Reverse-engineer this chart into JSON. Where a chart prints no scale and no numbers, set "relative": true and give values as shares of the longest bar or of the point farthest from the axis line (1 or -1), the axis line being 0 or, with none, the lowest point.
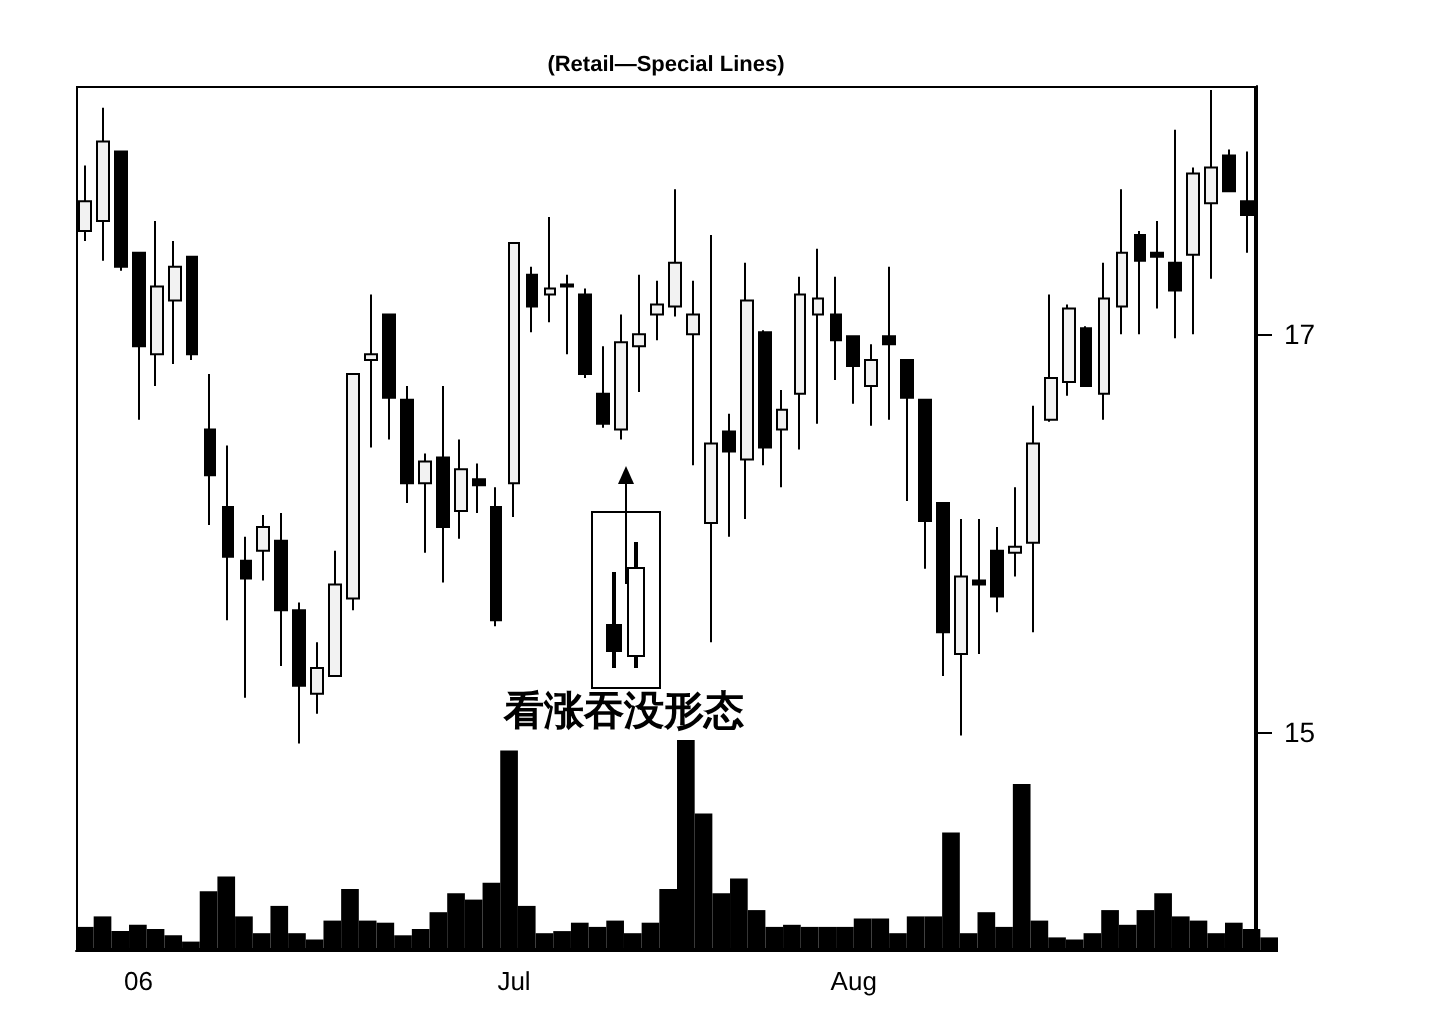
{
  "chart_data": [
    {
      "type": "candlestick",
      "title": "(Retail—Special Lines)",
      "color": "#000000",
      "ylim": [
        13.9,
        18.25
      ],
      "yticks": [
        15,
        17
      ],
      "annotations": [
        "看涨吞没形态"
      ],
      "categories": [
        null,
        null,
        null,
        "06",
        null,
        null,
        null,
        null,
        null,
        null,
        null,
        null,
        null,
        null,
        null,
        null,
        null,
        null,
        null,
        null,
        null,
        null,
        null,
        null,
        "Jul",
        null,
        null,
        null,
        null,
        null,
        null,
        null,
        null,
        null,
        null,
        null,
        null,
        null,
        null,
        null,
        null,
        null,
        null,
        "Aug",
        null,
        null,
        null,
        null,
        null,
        null,
        null,
        null,
        null,
        null,
        null,
        null,
        null,
        null,
        null,
        null,
        null,
        null,
        null,
        null,
        null,
        null
      ],
      "ohlc": [
        [
          17.52,
          17.85,
          17.47,
          17.67
        ],
        [
          17.57,
          18.14,
          17.37,
          17.97
        ],
        [
          17.92,
          17.92,
          17.32,
          17.34
        ],
        [
          17.41,
          17.41,
          16.57,
          16.94
        ],
        [
          16.9,
          17.57,
          16.74,
          17.24
        ],
        [
          17.17,
          17.47,
          16.85,
          17.34
        ],
        [
          17.39,
          17.39,
          16.87,
          16.9
        ],
        [
          16.52,
          16.8,
          16.04,
          16.29
        ],
        [
          16.13,
          16.44,
          15.56,
          15.88
        ],
        [
          15.86,
          15.98,
          15.17,
          15.77
        ],
        [
          15.91,
          16.09,
          15.76,
          16.03
        ],
        [
          15.96,
          16.1,
          15.33,
          15.61
        ],
        [
          15.61,
          15.65,
          14.94,
          15.23
        ],
        [
          15.19,
          15.45,
          15.09,
          15.32
        ],
        [
          15.28,
          15.91,
          15.28,
          15.74
        ],
        [
          15.67,
          16.8,
          15.61,
          16.8
        ],
        [
          16.87,
          17.2,
          16.43,
          16.9
        ],
        [
          17.1,
          17.1,
          16.47,
          16.68
        ],
        [
          16.67,
          16.74,
          16.15,
          16.25
        ],
        [
          16.25,
          16.4,
          15.9,
          16.36
        ],
        [
          16.38,
          16.74,
          15.75,
          16.03
        ],
        [
          16.11,
          16.47,
          15.97,
          16.32
        ],
        [
          16.27,
          16.35,
          16.1,
          16.24
        ],
        [
          16.13,
          16.23,
          15.53,
          15.56
        ],
        [
          16.25,
          17.46,
          16.08,
          17.46
        ],
        [
          17.3,
          17.34,
          17.01,
          17.14
        ],
        [
          17.2,
          17.59,
          17.06,
          17.23
        ],
        [
          17.25,
          17.3,
          16.9,
          17.24
        ],
        [
          17.2,
          17.23,
          16.78,
          16.8
        ],
        [
          16.7,
          16.94,
          16.53,
          16.55
        ],
        [
          16.52,
          17.1,
          16.47,
          16.96
        ],
        [
          16.94,
          17.3,
          16.71,
          17.0
        ],
        [
          17.1,
          17.27,
          16.97,
          17.15
        ],
        [
          17.14,
          17.73,
          17.09,
          17.36
        ],
        [
          17.0,
          17.27,
          16.34,
          17.1
        ],
        [
          16.05,
          17.5,
          15.45,
          16.45
        ],
        [
          16.51,
          16.6,
          15.98,
          16.41
        ],
        [
          16.37,
          17.36,
          16.07,
          17.17
        ],
        [
          17.01,
          17.02,
          16.34,
          16.43
        ],
        [
          16.52,
          16.72,
          16.23,
          16.62
        ],
        [
          16.7,
          17.29,
          16.42,
          17.2
        ],
        [
          17.1,
          17.43,
          16.55,
          17.18
        ],
        [
          17.1,
          17.29,
          16.77,
          16.97
        ],
        [
          16.99,
          16.99,
          16.65,
          16.84
        ],
        [
          16.74,
          16.95,
          16.54,
          16.87
        ],
        [
          16.99,
          17.34,
          16.57,
          16.95
        ],
        [
          16.87,
          16.87,
          16.16,
          16.68
        ],
        [
          16.67,
          16.67,
          15.82,
          16.06
        ],
        [
          16.15,
          16.15,
          15.28,
          15.5
        ],
        [
          15.39,
          16.07,
          14.98,
          15.78
        ],
        [
          15.76,
          16.07,
          15.39,
          15.74
        ],
        [
          15.91,
          16.03,
          15.6,
          15.68
        ],
        [
          15.9,
          16.23,
          15.78,
          15.93
        ],
        [
          15.95,
          16.64,
          15.5,
          16.45
        ],
        [
          16.57,
          17.2,
          16.56,
          16.78
        ],
        [
          16.76,
          17.15,
          16.69,
          17.13
        ],
        [
          17.03,
          17.04,
          16.74,
          16.74
        ],
        [
          16.7,
          17.36,
          16.57,
          17.18
        ],
        [
          17.14,
          17.73,
          17.0,
          17.41
        ],
        [
          17.5,
          17.52,
          17.0,
          17.37
        ],
        [
          17.41,
          17.57,
          17.13,
          17.39
        ],
        [
          17.36,
          18.03,
          16.98,
          17.22
        ],
        [
          17.4,
          17.84,
          17.0,
          17.81
        ],
        [
          17.66,
          18.23,
          17.28,
          17.84
        ],
        [
          17.9,
          17.93,
          17.72,
          17.72
        ],
        [
          17.67,
          17.92,
          17.41,
          17.6
        ]
      ]
    },
    {
      "type": "bar",
      "relative": true,
      "color": "#000000",
      "categories": [
        null,
        null,
        null,
        null,
        null,
        null,
        null,
        null,
        null,
        null,
        null,
        null,
        null,
        null,
        null,
        null,
        null,
        null,
        null,
        null,
        null,
        null,
        null,
        null,
        null,
        null,
        null,
        null,
        null,
        null,
        null,
        null,
        null,
        null,
        null,
        null,
        null,
        null,
        null,
        null,
        null,
        null,
        null,
        null,
        null,
        null,
        null,
        null,
        null,
        null,
        null,
        null,
        null,
        null,
        null,
        null,
        null,
        null,
        null,
        null,
        null,
        null,
        null,
        null,
        null,
        null,
        null,
        null
      ],
      "values": [
        0.11,
        0.16,
        0.09,
        0.12,
        0.1,
        0.07,
        0.04,
        0.28,
        0.35,
        0.16,
        0.08,
        0.21,
        0.08,
        0.05,
        0.14,
        0.29,
        0.14,
        0.13,
        0.07,
        0.1,
        0.18,
        0.27,
        0.24,
        0.32,
        0.95,
        0.21,
        0.08,
        0.09,
        0.13,
        0.11,
        0.14,
        0.08,
        0.13,
        0.29,
        1,
        0.65,
        0.27,
        0.34,
        0.19,
        0.11,
        0.12,
        0.11,
        0.11,
        0.11,
        0.15,
        0.15,
        0.08,
        0.16,
        0.16,
        0.56,
        0.08,
        0.18,
        0.11,
        0.79,
        0.14,
        0.06,
        0.05,
        0.08,
        0.19,
        0.12,
        0.19,
        0.27,
        0.16,
        0.14,
        0.08,
        0.13,
        0.1,
        0.06
      ]
    }
  ]
}
